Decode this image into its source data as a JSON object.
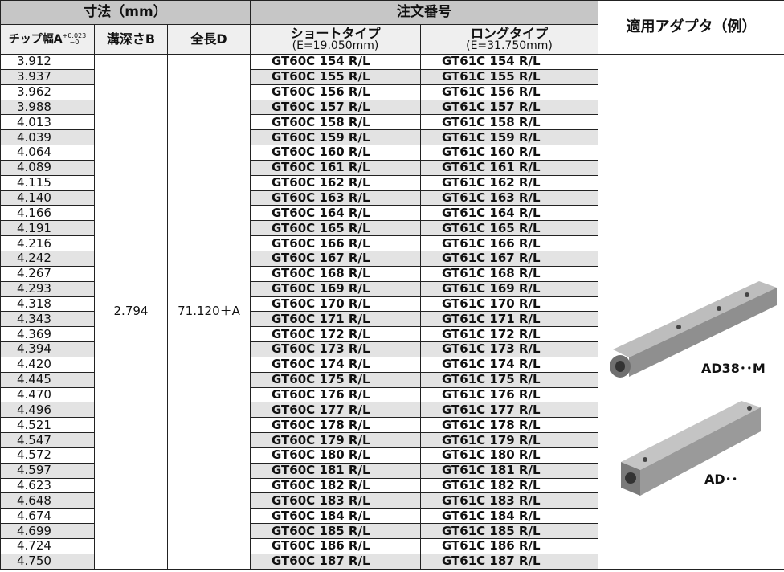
{
  "header": {
    "dimensions": "寸法（mm）",
    "order_number": "注文番号",
    "adapter": "適用アダプタ（例）",
    "chip_width": "チップ幅A",
    "tol_upper": "+0.023",
    "tol_lower": "−0",
    "groove_depth": "溝深さB",
    "overall_length": "全長D",
    "short_type": "ショートタイプ",
    "short_e": "(E=19.050mm)",
    "long_type": "ロングタイプ",
    "long_e": "(E=31.750mm)"
  },
  "table": {
    "groove_depth": "2.794",
    "overall_length": "71.120＋A",
    "rows": [
      [
        "3.912",
        "GT60C 154 R/L",
        "GT61C 154 R/L"
      ],
      [
        "3.937",
        "GT60C 155 R/L",
        "GT61C 155 R/L"
      ],
      [
        "3.962",
        "GT60C 156 R/L",
        "GT61C 156 R/L"
      ],
      [
        "3.988",
        "GT60C 157 R/L",
        "GT61C 157 R/L"
      ],
      [
        "4.013",
        "GT60C 158 R/L",
        "GT61C 158 R/L"
      ],
      [
        "4.039",
        "GT60C 159 R/L",
        "GT61C 159 R/L"
      ],
      [
        "4.064",
        "GT60C 160 R/L",
        "GT61C 160 R/L"
      ],
      [
        "4.089",
        "GT60C 161 R/L",
        "GT61C 161 R/L"
      ],
      [
        "4.115",
        "GT60C 162 R/L",
        "GT61C 162 R/L"
      ],
      [
        "4.140",
        "GT60C 163 R/L",
        "GT61C 163 R/L"
      ],
      [
        "4.166",
        "GT60C 164 R/L",
        "GT61C 164 R/L"
      ],
      [
        "4.191",
        "GT60C 165 R/L",
        "GT61C 165 R/L"
      ],
      [
        "4.216",
        "GT60C 166 R/L",
        "GT61C 166 R/L"
      ],
      [
        "4.242",
        "GT60C 167 R/L",
        "GT61C 167 R/L"
      ],
      [
        "4.267",
        "GT60C 168 R/L",
        "GT61C 168 R/L"
      ],
      [
        "4.293",
        "GT60C 169 R/L",
        "GT61C 169 R/L"
      ],
      [
        "4.318",
        "GT60C 170 R/L",
        "GT61C 170 R/L"
      ],
      [
        "4.343",
        "GT60C 171 R/L",
        "GT61C 171 R/L"
      ],
      [
        "4.369",
        "GT60C 172 R/L",
        "GT61C 172 R/L"
      ],
      [
        "4.394",
        "GT60C 173 R/L",
        "GT61C 173 R/L"
      ],
      [
        "4.420",
        "GT60C 174 R/L",
        "GT61C 174 R/L"
      ],
      [
        "4.445",
        "GT60C 175 R/L",
        "GT61C 175 R/L"
      ],
      [
        "4.470",
        "GT60C 176 R/L",
        "GT61C 176 R/L"
      ],
      [
        "4.496",
        "GT60C 177 R/L",
        "GT61C 177 R/L"
      ],
      [
        "4.521",
        "GT60C 178 R/L",
        "GT61C 178 R/L"
      ],
      [
        "4.547",
        "GT60C 179 R/L",
        "GT61C 179 R/L"
      ],
      [
        "4.572",
        "GT60C 180 R/L",
        "GT61C 180 R/L"
      ],
      [
        "4.597",
        "GT60C 181 R/L",
        "GT61C 181 R/L"
      ],
      [
        "4.623",
        "GT60C 182 R/L",
        "GT61C 182 R/L"
      ],
      [
        "4.648",
        "GT60C 183 R/L",
        "GT61C 183 R/L"
      ],
      [
        "4.674",
        "GT60C 184 R/L",
        "GT61C 184 R/L"
      ],
      [
        "4.699",
        "GT60C 185 R/L",
        "GT61C 185 R/L"
      ],
      [
        "4.724",
        "GT60C 186 R/L",
        "GT61C 186 R/L"
      ],
      [
        "4.750",
        "GT60C 187 R/L",
        "GT61C 187 R/L"
      ]
    ]
  },
  "adapters": [
    "AD38･･M",
    "AD･･"
  ]
}
